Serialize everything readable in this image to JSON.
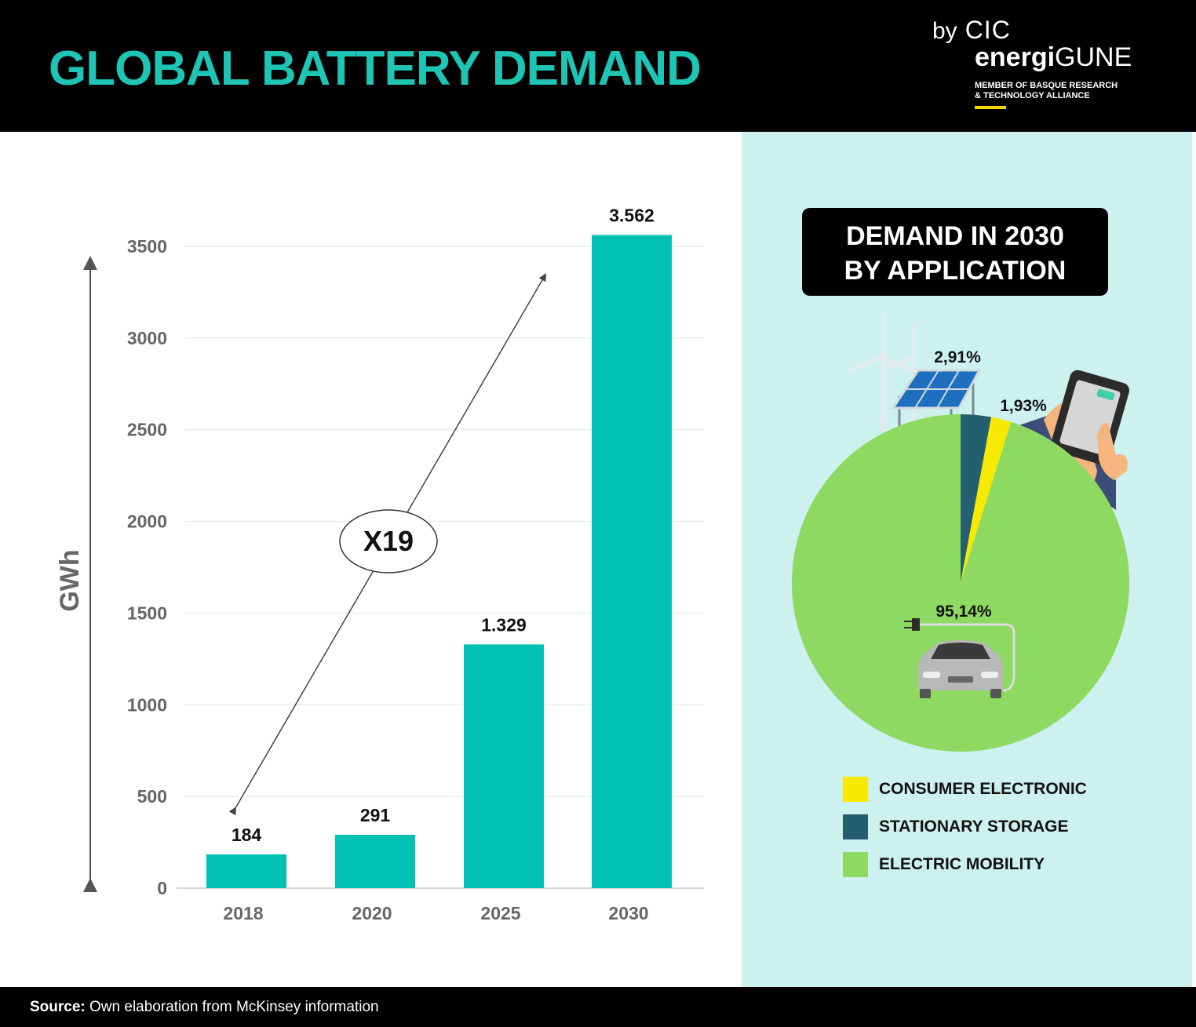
{
  "header": {
    "title": "GLOBAL BATTERY DEMAND",
    "brand_by": "by",
    "brand_cic": "CIC",
    "brand_energi_bold": "energi",
    "brand_energi_light": "GUNE",
    "brand_member_line1": "MEMBER OF BASQUE RESEARCH",
    "brand_member_line2": "& TECHNOLOGY ALLIANCE"
  },
  "colors": {
    "teal": "#00c2b4",
    "title_teal": "#1ec4b4",
    "panel_bg": "#cdf1ee",
    "consumer_electronic": "#f7ea00",
    "stationary_storage": "#245f70",
    "electric_mobility": "#8ed962"
  },
  "chart_data": [
    {
      "type": "bar",
      "categories": [
        "2018",
        "2020",
        "2025",
        "2030"
      ],
      "values": [
        184,
        291,
        1329,
        3562
      ],
      "value_labels": [
        "184",
        "291",
        "1.329",
        "3.562"
      ],
      "ylabel": "GWh",
      "ylim": [
        0,
        3500
      ],
      "yticks": [
        0,
        500,
        1000,
        1500,
        2000,
        2500,
        3000,
        3500
      ],
      "grid": true,
      "annotation": "X19"
    },
    {
      "type": "pie",
      "title_line1": "DEMAND IN 2030",
      "title_line2": "BY APPLICATION",
      "slices": [
        {
          "name": "STATIONARY STORAGE",
          "value": 2.91,
          "label": "2,91%",
          "color": "#245f70"
        },
        {
          "name": "CONSUMER ELECTRONIC",
          "value": 1.93,
          "label": "1,93%",
          "color": "#f7ea00"
        },
        {
          "name": "ELECTRIC MOBILITY",
          "value": 95.14,
          "label": "95,14%",
          "color": "#8ed962"
        }
      ],
      "legend": [
        "CONSUMER ELECTRONIC",
        "STATIONARY STORAGE",
        "ELECTRIC MOBILITY"
      ],
      "legend_position": "bottom"
    }
  ],
  "footer": {
    "source_label": "Source:",
    "source_text": " Own elaboration from McKinsey information"
  }
}
